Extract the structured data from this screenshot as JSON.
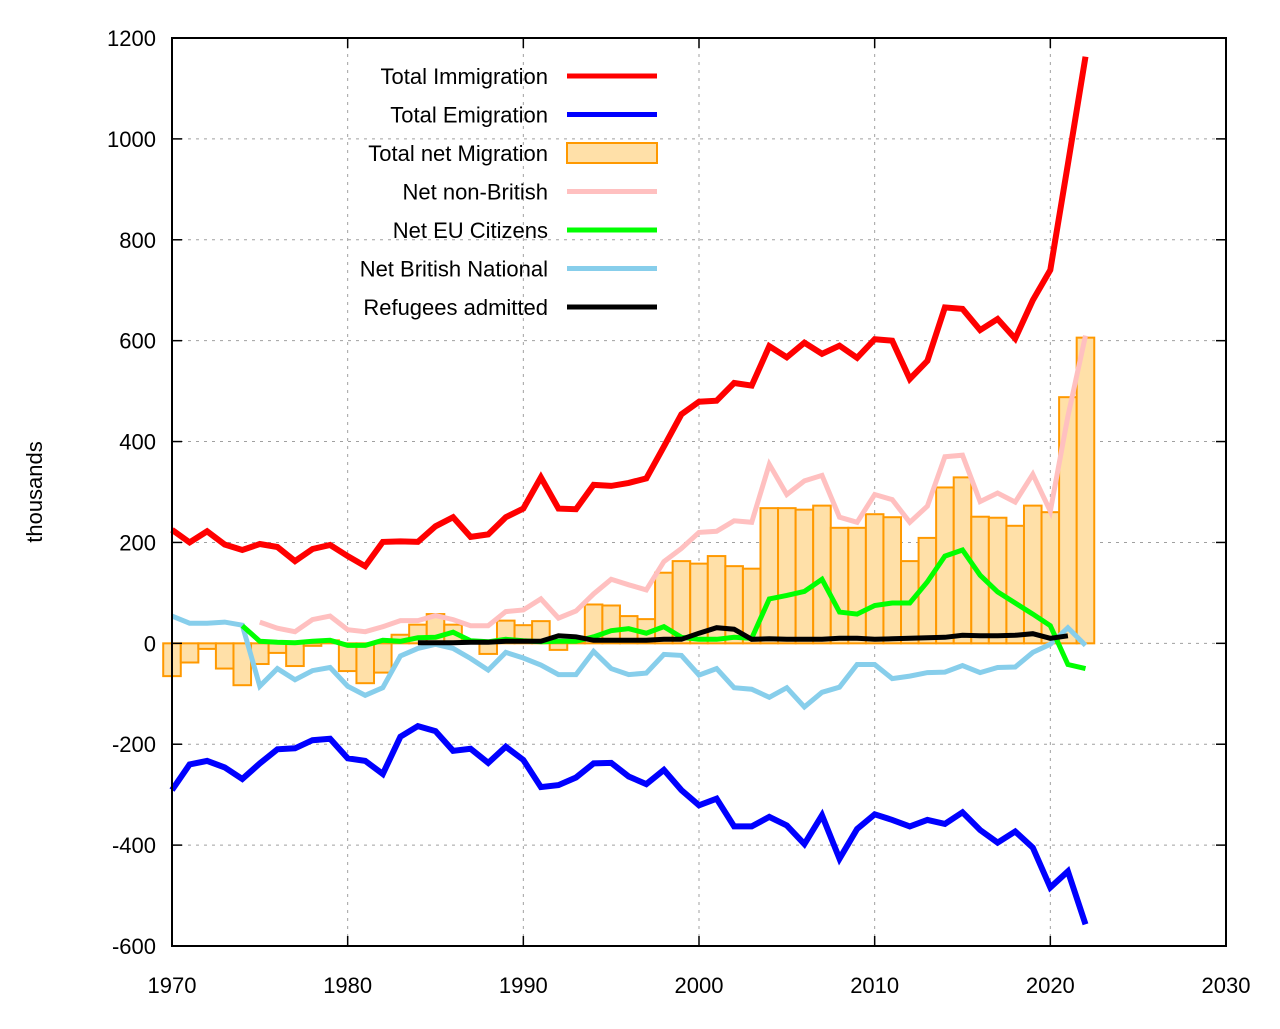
{
  "chart_data": {
    "type": "line",
    "title": "",
    "xlabel": "",
    "ylabel": "thousands",
    "xlim": [
      1970,
      2030
    ],
    "ylim": [
      -600,
      1200
    ],
    "x_ticks": [
      1970,
      1980,
      1990,
      2000,
      2010,
      2020,
      2030
    ],
    "y_ticks": [
      -600,
      -400,
      -200,
      0,
      200,
      400,
      600,
      800,
      1000,
      1200
    ],
    "grid": true,
    "legend_position": "top-left",
    "series": [
      {
        "name": "Total Immigration",
        "kind": "line",
        "color": "#ff0000",
        "x": [
          1970,
          1971,
          1972,
          1973,
          1974,
          1975,
          1976,
          1977,
          1978,
          1979,
          1980,
          1981,
          1982,
          1983,
          1984,
          1985,
          1986,
          1987,
          1988,
          1989,
          1990,
          1991,
          1992,
          1993,
          1994,
          1995,
          1996,
          1997,
          1998,
          1999,
          2000,
          2001,
          2002,
          2003,
          2004,
          2005,
          2006,
          2007,
          2008,
          2009,
          2010,
          2011,
          2012,
          2013,
          2014,
          2015,
          2016,
          2017,
          2018,
          2019,
          2020,
          2021,
          2022
        ],
        "values": [
          225,
          200,
          222,
          196,
          185,
          197,
          191,
          163,
          187,
          195,
          173,
          153,
          201,
          202,
          201,
          232,
          250,
          211,
          216,
          250,
          267,
          329,
          267,
          266,
          314,
          312,
          318,
          327,
          390,
          454,
          479,
          481,
          516,
          511,
          589,
          567,
          596,
          574,
          590,
          566,
          603,
          600,
          524,
          560,
          666,
          663,
          621,
          643,
          604,
          680,
          740,
          950,
          1163
        ]
      },
      {
        "name": "Total Emigration",
        "kind": "line",
        "color": "#0000ff",
        "x": [
          1970,
          1971,
          1972,
          1973,
          1974,
          1975,
          1976,
          1977,
          1978,
          1979,
          1980,
          1981,
          1982,
          1983,
          1984,
          1985,
          1986,
          1987,
          1988,
          1989,
          1990,
          1991,
          1992,
          1993,
          1994,
          1995,
          1996,
          1997,
          1998,
          1999,
          2000,
          2001,
          2002,
          2003,
          2004,
          2005,
          2006,
          2007,
          2008,
          2009,
          2010,
          2011,
          2012,
          2013,
          2014,
          2015,
          2016,
          2017,
          2018,
          2019,
          2020,
          2021,
          2022
        ],
        "values": [
          -291,
          -240,
          -233,
          -246,
          -269,
          -238,
          -210,
          -208,
          -192,
          -189,
          -228,
          -233,
          -259,
          -185,
          -164,
          -174,
          -213,
          -209,
          -237,
          -205,
          -231,
          -285,
          -281,
          -266,
          -238,
          -237,
          -264,
          -279,
          -251,
          -291,
          -321,
          -308,
          -363,
          -363,
          -344,
          -361,
          -398,
          -341,
          -427,
          -368,
          -339,
          -350,
          -363,
          -350,
          -358,
          -335,
          -370,
          -395,
          -373,
          -405,
          -484,
          -452,
          -557
        ]
      },
      {
        "name": "Total net Migration",
        "kind": "bar",
        "color": "#ffe0a8",
        "edge_color": "#ff9900",
        "x": [
          1970,
          1971,
          1972,
          1973,
          1974,
          1975,
          1976,
          1977,
          1978,
          1979,
          1980,
          1981,
          1982,
          1983,
          1984,
          1985,
          1986,
          1987,
          1988,
          1989,
          1990,
          1991,
          1992,
          1993,
          1994,
          1995,
          1996,
          1997,
          1998,
          1999,
          2000,
          2001,
          2002,
          2003,
          2004,
          2005,
          2006,
          2007,
          2008,
          2009,
          2010,
          2011,
          2012,
          2013,
          2014,
          2015,
          2016,
          2017,
          2018,
          2019,
          2020,
          2021,
          2022
        ],
        "values": [
          -65,
          -38,
          -11,
          -50,
          -83,
          -41,
          -19,
          -45,
          -5,
          6,
          -55,
          -79,
          -58,
          17,
          37,
          58,
          37,
          2,
          -21,
          45,
          36,
          44,
          -13,
          1,
          77,
          75,
          54,
          48,
          140,
          163,
          158,
          173,
          153,
          148,
          268,
          268,
          265,
          273,
          229,
          229,
          256,
          250,
          163,
          209,
          309,
          329,
          251,
          249,
          233,
          273,
          260,
          488,
          606
        ]
      },
      {
        "name": "Net non-British",
        "kind": "line",
        "color": "#ffc0c0",
        "x": [
          1975,
          1976,
          1977,
          1978,
          1979,
          1980,
          1981,
          1982,
          1983,
          1984,
          1985,
          1986,
          1987,
          1988,
          1989,
          1990,
          1991,
          1992,
          1993,
          1994,
          1995,
          1996,
          1997,
          1998,
          1999,
          2000,
          2001,
          2002,
          2003,
          2004,
          2005,
          2006,
          2007,
          2008,
          2009,
          2010,
          2011,
          2012,
          2013,
          2014,
          2015,
          2016,
          2017,
          2018,
          2019,
          2020,
          2021,
          2022
        ],
        "values": [
          42,
          30,
          23,
          47,
          54,
          27,
          23,
          33,
          45,
          45,
          55,
          47,
          35,
          35,
          63,
          66,
          88,
          50,
          64,
          98,
          127,
          116,
          106,
          162,
          188,
          220,
          222,
          243,
          240,
          355,
          295,
          322,
          333,
          250,
          240,
          295,
          285,
          240,
          272,
          370,
          373,
          281,
          298,
          280,
          335,
          262,
          450,
          610
        ]
      },
      {
        "name": "Net EU Citizens",
        "kind": "line",
        "color": "#00ff00",
        "x": [
          1974,
          1975,
          1976,
          1977,
          1978,
          1979,
          1980,
          1981,
          1982,
          1983,
          1984,
          1985,
          1986,
          1987,
          1988,
          1989,
          1990,
          1991,
          1992,
          1993,
          1994,
          1995,
          1996,
          1997,
          1998,
          1999,
          2000,
          2001,
          2002,
          2003,
          2004,
          2005,
          2006,
          2007,
          2008,
          2009,
          2010,
          2011,
          2012,
          2013,
          2014,
          2015,
          2016,
          2017,
          2018,
          2019,
          2020,
          2021,
          2022
        ],
        "values": [
          35,
          4,
          2,
          1,
          4,
          6,
          -4,
          -4,
          6,
          4,
          11,
          12,
          22,
          5,
          3,
          8,
          5,
          3,
          4,
          4,
          13,
          25,
          29,
          20,
          33,
          12,
          8,
          8,
          12,
          10,
          88,
          95,
          103,
          127,
          62,
          58,
          75,
          80,
          80,
          122,
          173,
          185,
          135,
          102,
          80,
          58,
          35,
          -42,
          -50
        ]
      },
      {
        "name": "Net British National",
        "kind": "line",
        "color": "#87ceeb",
        "x": [
          1970,
          1971,
          1972,
          1973,
          1974,
          1975,
          1976,
          1977,
          1978,
          1979,
          1980,
          1981,
          1982,
          1983,
          1984,
          1985,
          1986,
          1987,
          1988,
          1989,
          1990,
          1991,
          1992,
          1993,
          1994,
          1995,
          1996,
          1997,
          1998,
          1999,
          2000,
          2001,
          2002,
          2003,
          2004,
          2005,
          2006,
          2007,
          2008,
          2009,
          2010,
          2011,
          2012,
          2013,
          2014,
          2015,
          2016,
          2017,
          2018,
          2019,
          2020,
          2021,
          2022
        ],
        "values": [
          54,
          40,
          40,
          42,
          36,
          -85,
          -50,
          -72,
          -54,
          -48,
          -85,
          -103,
          -88,
          -25,
          -10,
          -2,
          -10,
          -30,
          -53,
          -18,
          -29,
          -43,
          -62,
          -62,
          -16,
          -50,
          -62,
          -59,
          -22,
          -24,
          -63,
          -50,
          -88,
          -91,
          -107,
          -88,
          -126,
          -97,
          -87,
          -42,
          -42,
          -70,
          -65,
          -58,
          -57,
          -44,
          -58,
          -48,
          -47,
          -18,
          -2,
          31,
          -4
        ]
      },
      {
        "name": "Refugees admitted",
        "kind": "line",
        "color": "#000000",
        "x": [
          1984,
          1985,
          1986,
          1987,
          1988,
          1989,
          1990,
          1991,
          1992,
          1993,
          1994,
          1995,
          1996,
          1997,
          1998,
          1999,
          2000,
          2001,
          2002,
          2003,
          2004,
          2005,
          2006,
          2007,
          2008,
          2009,
          2010,
          2011,
          2012,
          2013,
          2014,
          2015,
          2016,
          2017,
          2018,
          2019,
          2020,
          2021
        ],
        "values": [
          1,
          1,
          1,
          2,
          2,
          4,
          4,
          4,
          15,
          13,
          6,
          6,
          6,
          6,
          8,
          8,
          20,
          31,
          28,
          8,
          9,
          8,
          8,
          8,
          10,
          10,
          8,
          9,
          10,
          11,
          12,
          16,
          15,
          15,
          16,
          19,
          10,
          15
        ]
      }
    ]
  }
}
